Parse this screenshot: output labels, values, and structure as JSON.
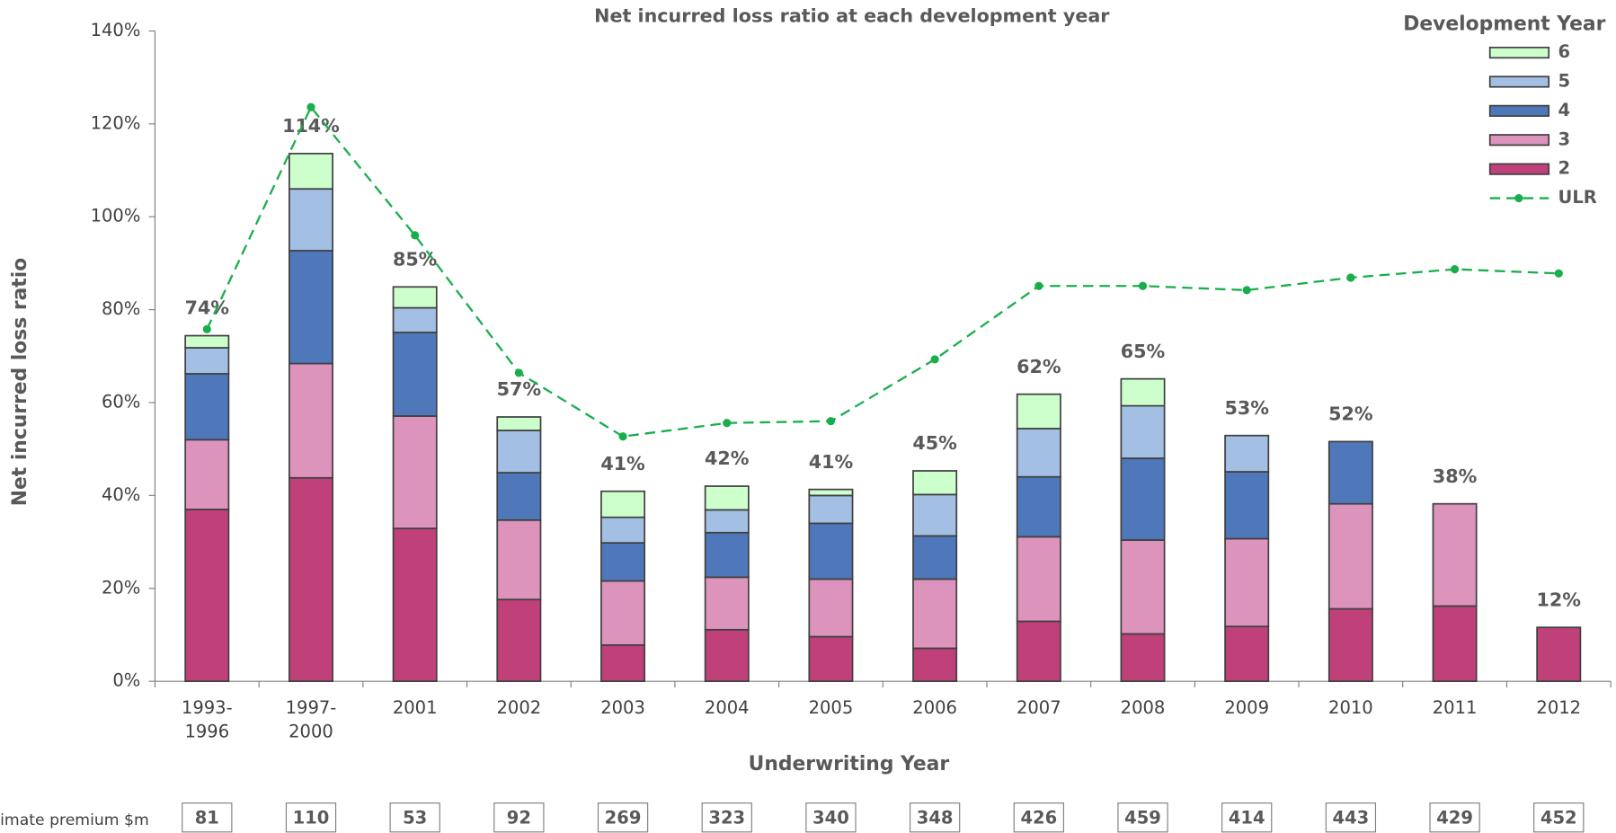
{
  "chart_data": {
    "type": "bar",
    "stacked": true,
    "title": "Net incurred loss ratio at each development year",
    "x_label": "Underwriting Year",
    "y_label": "Net incurred loss ratio",
    "legend_title": "Development Year",
    "legend": "top-right",
    "categories": [
      "1993-1996",
      "1997-2000",
      "2001",
      "2002",
      "2003",
      "2004",
      "2005",
      "2006",
      "2007",
      "2008",
      "2009",
      "2010",
      "2011",
      "2012"
    ],
    "series": [
      {
        "name": "2",
        "color": "#c0417a",
        "values": [
          37,
          43.8,
          32.9,
          17.6,
          7.8,
          11.1,
          9.6,
          7.1,
          12.9,
          10.2,
          11.8,
          15.6,
          16.2,
          11.6
        ]
      },
      {
        "name": "3",
        "color": "#dc94bd",
        "values": [
          15,
          24.6,
          24.2,
          17.1,
          13.8,
          11.3,
          12.4,
          14.9,
          18.2,
          20.2,
          18.9,
          22.6,
          22,
          null
        ]
      },
      {
        "name": "4",
        "color": "#4f78bb",
        "values": [
          14.2,
          24.3,
          18,
          10.2,
          8.2,
          9.6,
          12,
          9.3,
          12.9,
          17.6,
          14.4,
          13.4,
          null,
          null
        ]
      },
      {
        "name": "5",
        "color": "#a3bfe3",
        "values": [
          5.6,
          13.3,
          5.3,
          9.1,
          5.5,
          4.9,
          6,
          8.9,
          10.4,
          11.3,
          7.8,
          null,
          null,
          null
        ]
      },
      {
        "name": "6",
        "color": "#ccffcc",
        "values": [
          2.6,
          7.6,
          4.5,
          2.9,
          5.6,
          5.1,
          1.3,
          5.1,
          7.4,
          5.8,
          null,
          null,
          null,
          null
        ]
      },
      {
        "name": "ULR",
        "type": "line",
        "color": "#19ae4c",
        "values": [
          75.8,
          123.6,
          96,
          66.4,
          52.7,
          55.6,
          56,
          69.3,
          85.1,
          85.1,
          84.2,
          86.9,
          88.7,
          87.8
        ]
      }
    ],
    "total_labels": [
      "74%",
      "114%",
      "85%",
      "57%",
      "41%",
      "42%",
      "41%",
      "45%",
      "62%",
      "65%",
      "53%",
      "52%",
      "38%",
      "12%"
    ],
    "ylim": [
      0,
      140
    ],
    "yticks": [
      {
        "value": 0,
        "label": "0%"
      },
      {
        "value": 20,
        "label": "20%"
      },
      {
        "value": 40,
        "label": "40%"
      },
      {
        "value": 60,
        "label": "60%"
      },
      {
        "value": 80,
        "label": "80%"
      },
      {
        "value": 100,
        "label": "100%"
      },
      {
        "value": 120,
        "label": "120%"
      },
      {
        "value": 140,
        "label": "140%"
      }
    ],
    "grid": false,
    "premium_label": "imate premium $m",
    "premium": [
      81,
      110,
      53,
      92,
      269,
      323,
      340,
      348,
      426,
      459,
      414,
      443,
      429,
      452
    ]
  }
}
